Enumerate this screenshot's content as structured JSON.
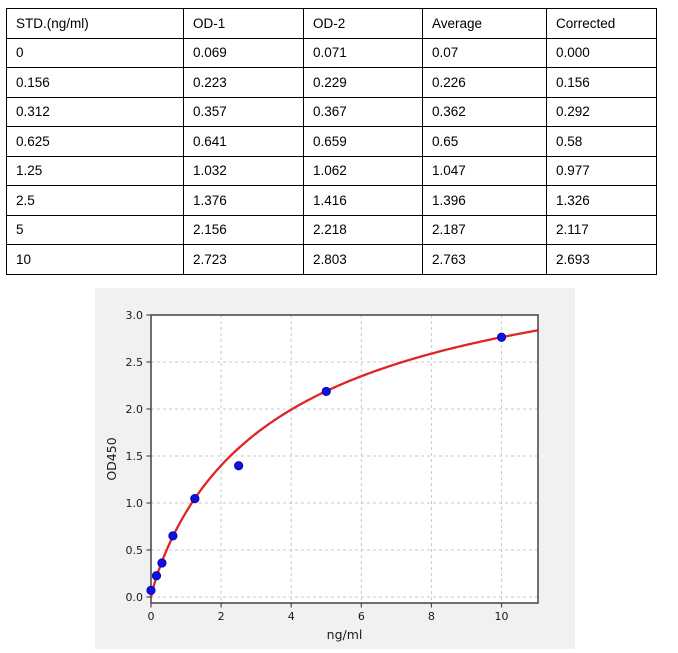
{
  "table": {
    "headers": [
      "STD.(ng/ml)",
      "OD-1",
      "OD-2",
      "Average",
      "Corrected"
    ],
    "rows": [
      [
        "0",
        "0.069",
        "0.071",
        "0.07",
        "0.000"
      ],
      [
        "0.156",
        "0.223",
        "0.229",
        "0.226",
        "0.156"
      ],
      [
        "0.312",
        "0.357",
        "0.367",
        "0.362",
        "0.292"
      ],
      [
        "0.625",
        "0.641",
        "0.659",
        "0.65",
        "0.58"
      ],
      [
        "1.25",
        "1.032",
        "1.062",
        "1.047",
        "0.977"
      ],
      [
        "2.5",
        "1.376",
        "1.416",
        "1.396",
        "1.326"
      ],
      [
        "5",
        "2.156",
        "2.218",
        "2.187",
        "2.117"
      ],
      [
        "10",
        "2.723",
        "2.803",
        "2.763",
        "2.693"
      ]
    ]
  },
  "chart_data": {
    "type": "scatter",
    "title": "",
    "xlabel": "ng/ml",
    "ylabel": "OD450",
    "x": [
      0,
      0.156,
      0.312,
      0.625,
      1.25,
      2.5,
      5,
      10
    ],
    "y": [
      0.07,
      0.226,
      0.362,
      0.65,
      1.047,
      1.396,
      2.187,
      2.763
    ],
    "xlim": [
      0,
      11.04
    ],
    "ylim": [
      -0.064,
      3.0
    ],
    "xticks": [
      0,
      2,
      4,
      6,
      8,
      10
    ],
    "yticks": [
      0.0,
      0.5,
      1.0,
      1.5,
      2.0,
      2.5,
      3.0
    ],
    "grid": true,
    "grid_style": "dashed",
    "legend": "none",
    "fit_curve": {
      "type": "4PL",
      "a": 0.0,
      "d": 4.0,
      "c": 4.03,
      "b": 0.885
    },
    "colors": {
      "point": "#1010e0",
      "point_edge": "#0000a8",
      "curve": "#e02424",
      "figure_bg": "#f1f1f1",
      "plot_bg": "#ffffff",
      "grid": "#c8c8c8",
      "spine": "#4d4d4d",
      "tick_text": "#1a1a1a"
    }
  }
}
